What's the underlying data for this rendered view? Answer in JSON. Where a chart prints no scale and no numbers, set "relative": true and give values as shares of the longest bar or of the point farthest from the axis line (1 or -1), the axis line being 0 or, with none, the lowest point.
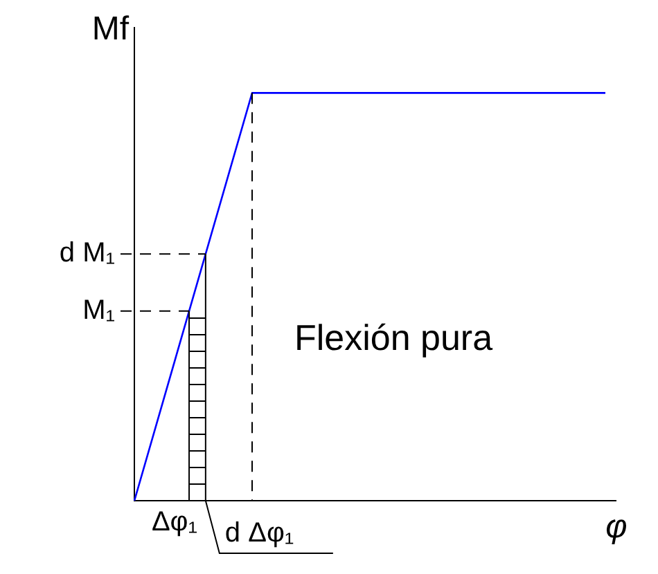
{
  "chart_data": {
    "type": "line",
    "xlabel": "φ",
    "ylabel": "Mf",
    "relative": true,
    "categories": [
      null,
      null,
      null,
      null,
      null
    ],
    "series": [
      {
        "color": "#0000ff",
        "values": [
          0,
          1,
          1,
          1,
          1
        ]
      }
    ],
    "annotations": [
      "Flexión pura",
      "M₁",
      "d M₁",
      "Δφ₁",
      "d Δφ₁"
    ],
    "legend": false,
    "marker": "none",
    "line_style": "solid"
  }
}
